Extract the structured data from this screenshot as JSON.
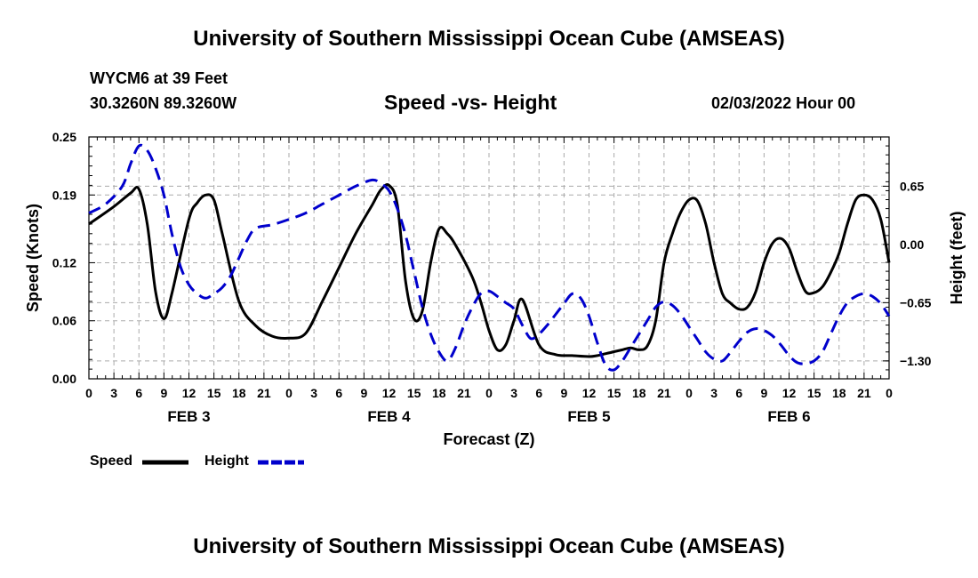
{
  "header": {
    "title": "University of Southern Mississippi Ocean Cube (AMSEAS)",
    "station": "WYCM6 at 39 Feet",
    "coords": "30.3260N  89.3260W",
    "subtitle": "Speed -vs- Height",
    "datetime": "02/03/2022 Hour 00",
    "footer_title": "University of Southern Mississippi Ocean Cube (AMSEAS)"
  },
  "legend": {
    "speed_label": "Speed",
    "height_label": "Height"
  },
  "colors": {
    "speed": "#000000",
    "height": "#0000cc",
    "grid": "#aaaaaa"
  },
  "chart_data": {
    "type": "line",
    "xlabel": "Forecast (Z)",
    "ylabel_left": "Speed (Knots)",
    "ylabel_right": "Height (feet)",
    "xlim": [
      0,
      96
    ],
    "ylim_left": [
      0,
      0.25
    ],
    "ylim_right": [
      -1.5,
      1.2
    ],
    "yticks_left": [
      0.0,
      0.06,
      0.12,
      0.19,
      0.25
    ],
    "ytick_labels_left": [
      "0.00",
      "0.06",
      "0.12",
      "0.19",
      "0.25"
    ],
    "yticks_right": [
      -1.3,
      -0.65,
      0.0,
      0.65
    ],
    "ytick_labels_right": [
      "−1.30",
      "−0.65",
      "0.00",
      "0.65"
    ],
    "xtick_labels": [
      "0",
      "3",
      "6",
      "9",
      "12",
      "15",
      "18",
      "21",
      "0",
      "3",
      "6",
      "9",
      "12",
      "15",
      "18",
      "21",
      "0",
      "3",
      "6",
      "9",
      "12",
      "15",
      "18",
      "21",
      "0",
      "3",
      "6",
      "9",
      "12",
      "15",
      "18",
      "21",
      "0"
    ],
    "day_labels": [
      {
        "label": "FEB 3",
        "x": 12
      },
      {
        "label": "FEB 4",
        "x": 36
      },
      {
        "label": "FEB 5",
        "x": 60
      },
      {
        "label": "FEB 6",
        "x": 84
      }
    ],
    "series": [
      {
        "name": "Speed",
        "axis": "left",
        "style": "solid",
        "x": [
          0,
          3,
          5,
          6,
          7,
          8,
          9,
          10,
          12,
          13,
          14,
          15,
          16,
          18,
          20,
          22,
          24,
          26,
          28,
          30,
          32,
          34,
          35,
          36,
          37,
          38,
          39,
          40,
          41,
          42,
          43,
          44,
          46,
          47,
          48,
          49,
          50,
          51,
          52,
          54,
          56,
          58,
          60,
          61,
          62,
          63,
          64,
          65,
          66,
          67,
          68,
          69,
          70,
          71,
          72,
          73,
          74,
          75,
          76,
          77,
          78,
          79,
          80,
          81,
          82,
          83,
          84,
          85,
          86,
          87,
          88,
          89,
          90,
          91,
          92,
          93,
          94,
          95,
          96
        ],
        "values": [
          0.16,
          0.178,
          0.192,
          0.196,
          0.16,
          0.09,
          0.062,
          0.09,
          0.165,
          0.182,
          0.19,
          0.185,
          0.15,
          0.08,
          0.055,
          0.044,
          0.042,
          0.047,
          0.08,
          0.115,
          0.15,
          0.18,
          0.195,
          0.2,
          0.18,
          0.1,
          0.062,
          0.07,
          0.12,
          0.155,
          0.15,
          0.138,
          0.105,
          0.08,
          0.05,
          0.03,
          0.035,
          0.06,
          0.082,
          0.035,
          0.025,
          0.024,
          0.023,
          0.024,
          0.026,
          0.028,
          0.03,
          0.032,
          0.03,
          0.034,
          0.06,
          0.12,
          0.15,
          0.172,
          0.185,
          0.184,
          0.16,
          0.12,
          0.088,
          0.078,
          0.072,
          0.074,
          0.09,
          0.12,
          0.14,
          0.145,
          0.135,
          0.11,
          0.09,
          0.089,
          0.095,
          0.11,
          0.13,
          0.16,
          0.185,
          0.19,
          0.185,
          0.165,
          0.12
        ]
      },
      {
        "name": "Height",
        "axis": "right",
        "style": "dashed",
        "x": [
          0,
          2,
          4,
          5,
          6,
          7,
          8,
          9,
          10,
          11,
          12,
          13,
          14,
          15,
          16,
          17,
          18,
          19,
          20,
          22,
          24,
          26,
          28,
          30,
          32,
          34,
          35,
          36,
          37,
          38,
          39,
          40,
          41,
          42,
          43,
          44,
          45,
          46,
          47,
          48,
          49,
          50,
          51,
          52,
          53,
          54,
          55,
          56,
          57,
          58,
          59,
          60,
          61,
          62,
          63,
          64,
          65,
          66,
          67,
          68,
          69,
          70,
          71,
          72,
          73,
          74,
          75,
          76,
          77,
          78,
          79,
          80,
          81,
          82,
          83,
          84,
          85,
          86,
          87,
          88,
          89,
          90,
          91,
          92,
          93,
          94,
          95,
          96
        ],
        "values": [
          0.35,
          0.45,
          0.65,
          0.9,
          1.1,
          1.05,
          0.85,
          0.55,
          0.1,
          -0.25,
          -0.45,
          -0.55,
          -0.6,
          -0.55,
          -0.48,
          -0.35,
          -0.15,
          0.05,
          0.18,
          0.22,
          0.28,
          0.35,
          0.45,
          0.55,
          0.65,
          0.72,
          0.68,
          0.6,
          0.4,
          0.1,
          -0.3,
          -0.7,
          -1.0,
          -1.2,
          -1.3,
          -1.15,
          -0.9,
          -0.7,
          -0.55,
          -0.52,
          -0.58,
          -0.65,
          -0.72,
          -0.9,
          -1.05,
          -1.0,
          -0.9,
          -0.78,
          -0.66,
          -0.55,
          -0.6,
          -0.8,
          -1.1,
          -1.35,
          -1.4,
          -1.3,
          -1.15,
          -1.0,
          -0.85,
          -0.7,
          -0.64,
          -0.68,
          -0.78,
          -0.92,
          -1.06,
          -1.2,
          -1.28,
          -1.3,
          -1.2,
          -1.08,
          -0.98,
          -0.94,
          -0.96,
          -1.02,
          -1.12,
          -1.24,
          -1.32,
          -1.33,
          -1.3,
          -1.2,
          -1.0,
          -0.8,
          -0.65,
          -0.58,
          -0.55,
          -0.58,
          -0.66,
          -0.8
        ]
      }
    ]
  }
}
